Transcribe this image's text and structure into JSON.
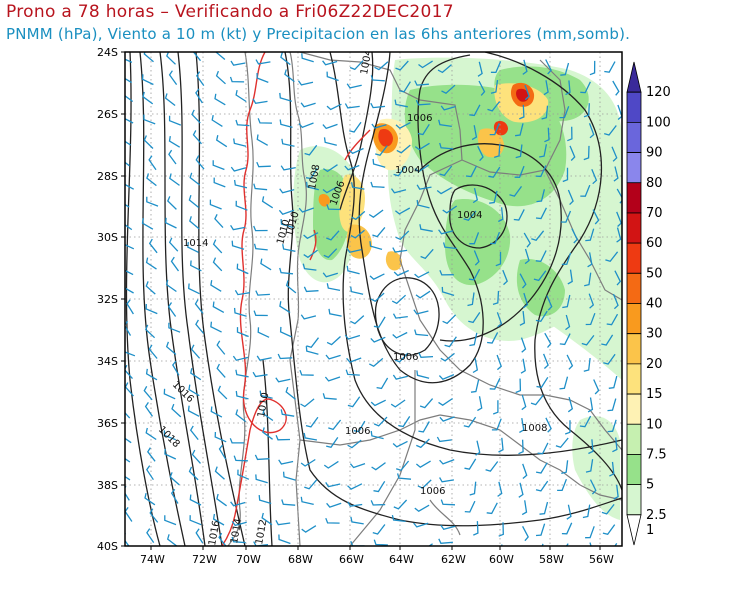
{
  "title_line1": "Prono a 78 horas – Verificando a Fri06Z22DEC2017",
  "title_line2": "PNMM (hPa), Viento a 10 m (kt) y Precipitacion en las 6hs anteriores (mm,somb).",
  "lat_labels": [
    "24S",
    "26S",
    "28S",
    "30S",
    "32S",
    "34S",
    "36S",
    "38S",
    "40S"
  ],
  "lon_labels": [
    "74W",
    "72W",
    "70W",
    "68W",
    "66W",
    "64W",
    "62W",
    "60W",
    "58W",
    "56W"
  ],
  "colorbar": {
    "levels": [
      "120",
      "100",
      "90",
      "80",
      "70",
      "60",
      "50",
      "40",
      "30",
      "20",
      "15",
      "10",
      "7.5",
      "5",
      "2.5",
      "1"
    ],
    "colors": [
      "#3a2a9a",
      "#4f48c6",
      "#6a66dc",
      "#8a86ec",
      "#b3001a",
      "#d21414",
      "#ee3a12",
      "#f46a14",
      "#f99a1e",
      "#fbc44a",
      "#fde27c",
      "#fef2b4",
      "#c6f0b0",
      "#96e18a",
      "#d6f6d0",
      "#ffffff"
    ]
  },
  "isobar_labels": [
    "1006",
    "1004",
    "1004",
    "1004",
    "1008",
    "1006",
    "1006",
    "1006",
    "1006",
    "1008",
    "1014",
    "1016",
    "1018",
    "1010",
    "1010",
    "1014",
    "1016",
    "1012",
    "1010"
  ],
  "colors": {
    "isobar": "#222222",
    "isobar_1010": "#e0312e",
    "wind_barb": "#1e8fc8",
    "border": "#7d7d7d",
    "grid": "#9a9a9a"
  }
}
